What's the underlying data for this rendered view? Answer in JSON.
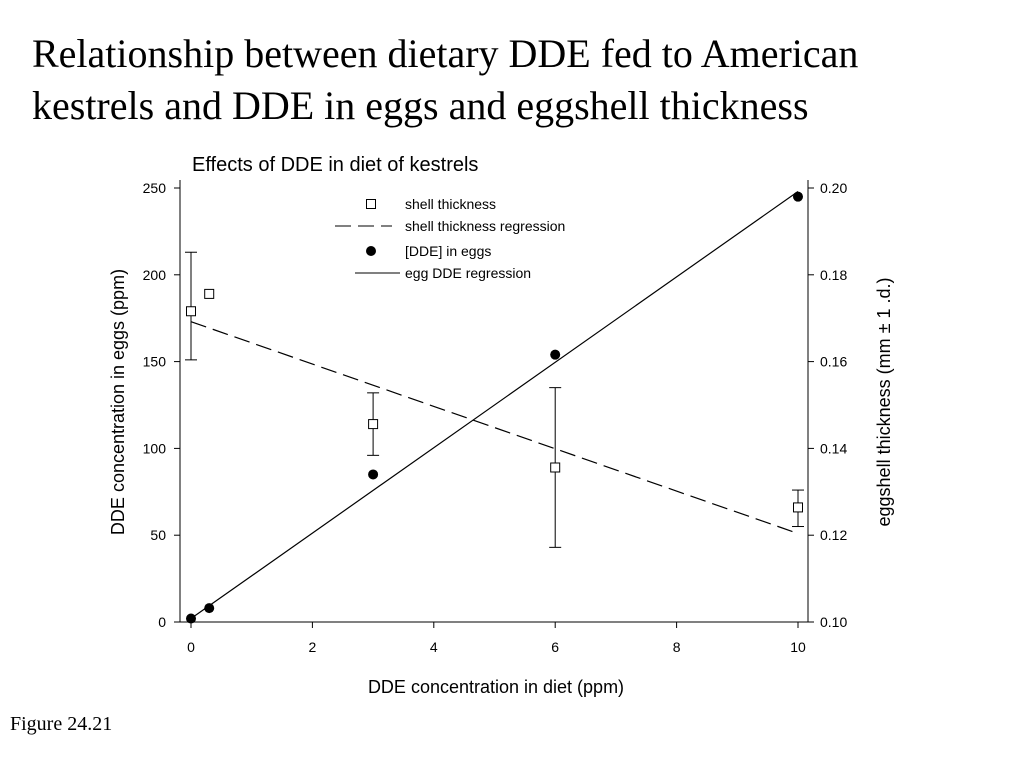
{
  "slide": {
    "title_line1": "Relationship between dietary DDE fed to American",
    "title_line2": "kestrels and DDE in eggs and eggshell thickness",
    "caption": "Figure 24.21"
  },
  "chart_data": {
    "type": "scatter",
    "title": "Effects of DDE in diet of kestrels",
    "xlabel": "DDE concentration in diet (ppm)",
    "ylabel_left": "DDE concentration in eggs (ppm)",
    "ylabel_right": "eggshell thickness (mm ± 1 .d.)",
    "xlim": [
      0,
      10
    ],
    "ylim_left": [
      0,
      250
    ],
    "ylim_right": [
      0.1,
      0.2
    ],
    "x_ticks": [
      "0",
      "2",
      "4",
      "6",
      "8",
      "10"
    ],
    "y_left_ticks": [
      "0",
      "50",
      "100",
      "150",
      "200",
      "250"
    ],
    "y_right_ticks": [
      "0.10",
      "0.12",
      "0.14",
      "0.16",
      "0.18",
      "0.20"
    ],
    "legend_position": "top-center",
    "grid": false,
    "series": [
      {
        "name": "shell thickness",
        "axis": "right",
        "marker": "open-square",
        "points": [
          {
            "x": 0,
            "y": 0.1716,
            "err_low": 0.1604,
            "err_high": 0.1852
          },
          {
            "x": 0.3,
            "y": 0.1756
          },
          {
            "x": 3,
            "y": 0.1456,
            "err_low": 0.1384,
            "err_high": 0.1528
          },
          {
            "x": 6,
            "y": 0.1356,
            "err_low": 0.1172,
            "err_high": 0.154
          },
          {
            "x": 10,
            "y": 0.1264,
            "err_low": 0.122,
            "err_high": 0.1304
          }
        ]
      },
      {
        "name": "shell thickness regression",
        "axis": "right",
        "style": "dashed",
        "line": [
          {
            "x": 0,
            "y": 0.1692
          },
          {
            "x": 10,
            "y": 0.1204
          }
        ]
      },
      {
        "name": "[DDE] in eggs",
        "axis": "left",
        "marker": "filled-circle",
        "points": [
          {
            "x": 0,
            "y": 2
          },
          {
            "x": 0.3,
            "y": 8
          },
          {
            "x": 3,
            "y": 85
          },
          {
            "x": 6,
            "y": 154
          },
          {
            "x": 10,
            "y": 245
          }
        ]
      },
      {
        "name": "egg DDE regression",
        "axis": "left",
        "style": "solid",
        "line": [
          {
            "x": 0,
            "y": 2
          },
          {
            "x": 10,
            "y": 248
          }
        ]
      }
    ]
  }
}
